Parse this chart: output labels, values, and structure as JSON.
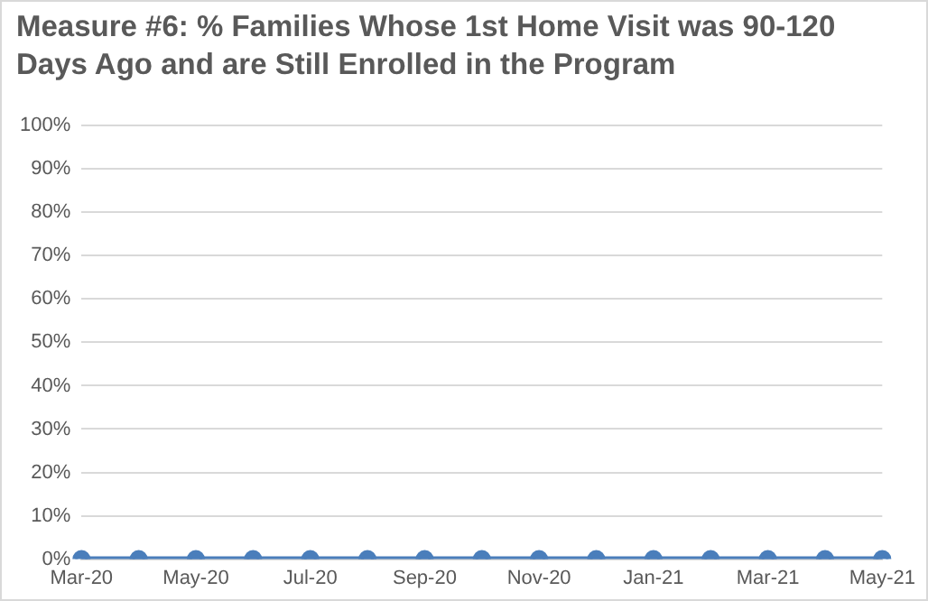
{
  "chart_data": {
    "type": "line",
    "title": "Measure #6: % Families Whose 1st Home Visit was 90-120 Days Ago and are Still Enrolled in the Program",
    "categories": [
      "Mar-20",
      null,
      "May-20",
      null,
      "Jul-20",
      null,
      "Sep-20",
      null,
      "Nov-20",
      null,
      "Jan-21",
      null,
      "Mar-21",
      null,
      "May-21"
    ],
    "series": [
      {
        "color": "#4a7ebb",
        "values": [
          0,
          0,
          0,
          0,
          0,
          0,
          0,
          0,
          0,
          0,
          0,
          0,
          0,
          0,
          0
        ]
      }
    ],
    "ylim": [
      0,
      100
    ],
    "yticks": [
      {
        "value": 0,
        "label": "0%"
      },
      {
        "value": 10,
        "label": "10%"
      },
      {
        "value": 20,
        "label": "20%"
      },
      {
        "value": 30,
        "label": "30%"
      },
      {
        "value": 40,
        "label": "40%"
      },
      {
        "value": 50,
        "label": "50%"
      },
      {
        "value": 60,
        "label": "60%"
      },
      {
        "value": 70,
        "label": "70%"
      },
      {
        "value": 80,
        "label": "80%"
      },
      {
        "value": 90,
        "label": "90%"
      },
      {
        "value": 100,
        "label": "100%"
      }
    ],
    "grid": "y",
    "legend": false,
    "marker": "circle",
    "line_style": "solid"
  }
}
